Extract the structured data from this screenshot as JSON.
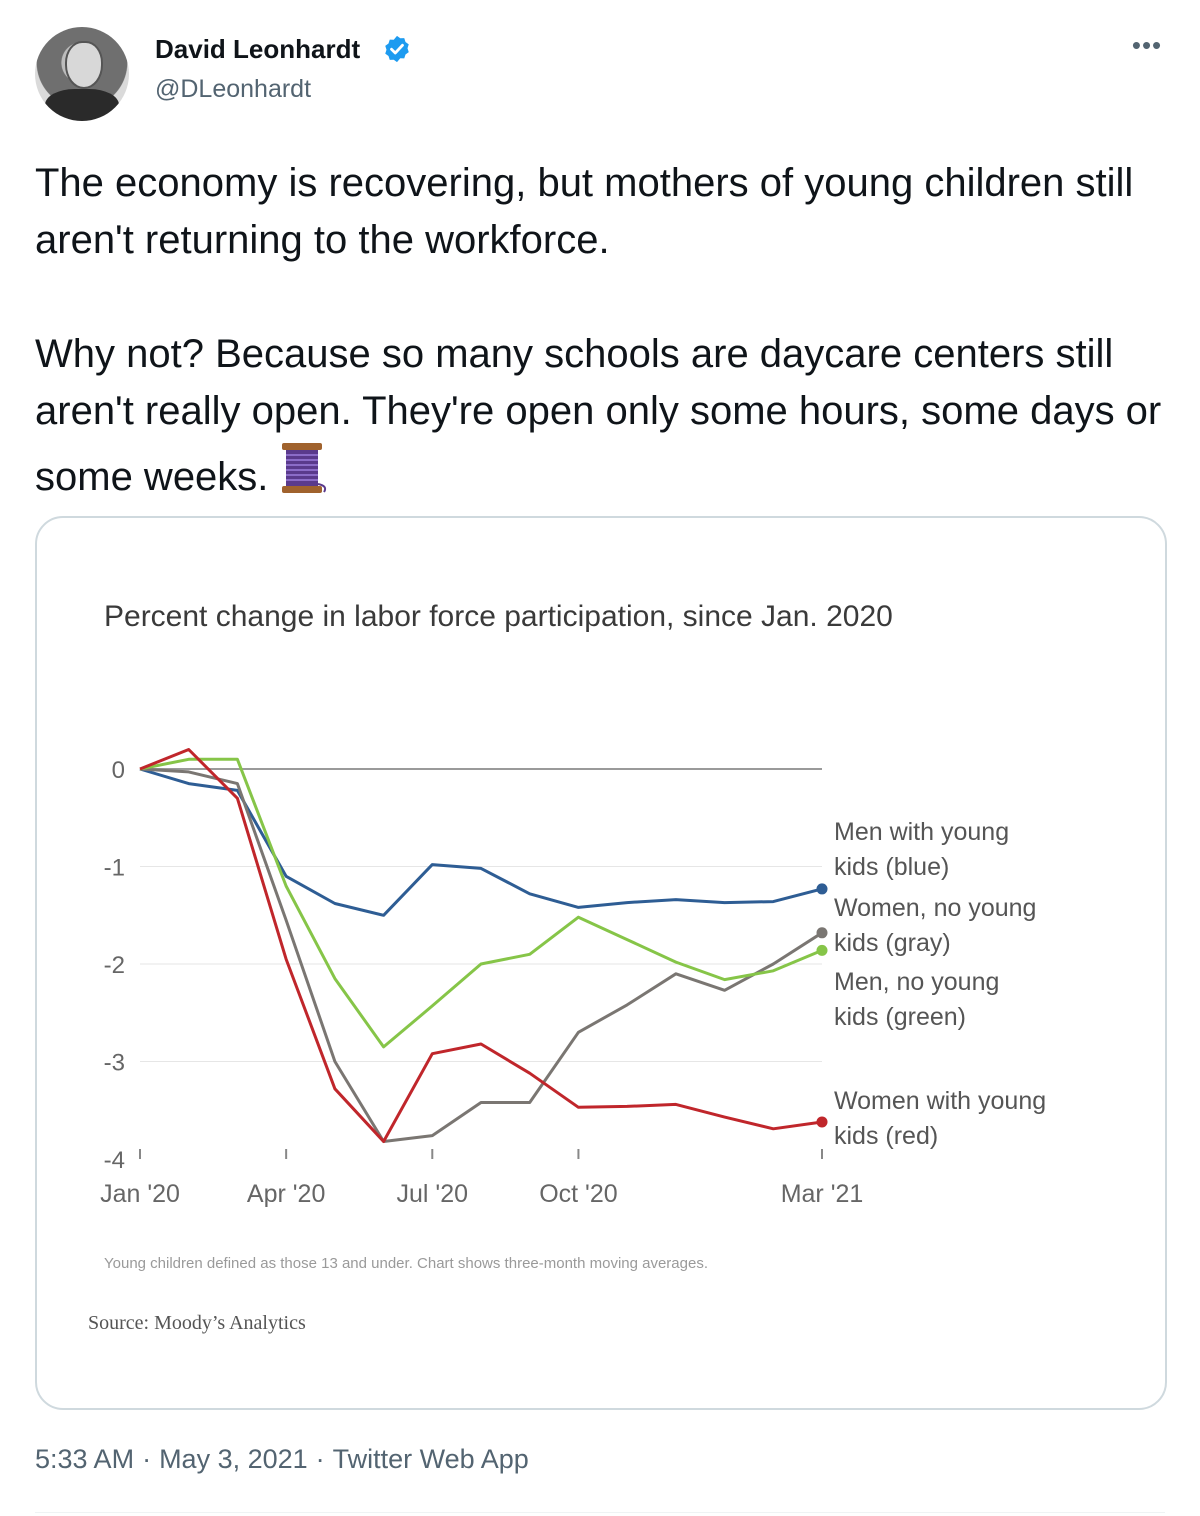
{
  "author": {
    "name": "David Leonhardt",
    "handle": "@DLeonhardt",
    "verified": true,
    "avatar_icon": "avatar-photo-icon"
  },
  "tweet": {
    "paragraph1": "The economy is recovering, but mothers of young children still aren't returning to the workforce.",
    "paragraph2": "Why not? Because so many schools are daycare centers still aren't really open. They're open only some hours, some days or some weeks.",
    "emoji_icon": "thread-spool-icon"
  },
  "meta": {
    "time": "5:33 AM",
    "date": "May 3, 2021",
    "source": "Twitter Web App",
    "separator": "·"
  },
  "colors": {
    "verified": "#1d9bf0",
    "blue": "#2e5d94",
    "gray": "#7a7672",
    "green": "#86c548",
    "red": "#c0262b",
    "zero_line": "#9a9a9a"
  },
  "chart_data": {
    "type": "line",
    "title": "Percent change in labor force participation, since Jan. 2020",
    "footnote": "Young children defined as those 13 and under. Chart shows three-month moving averages.",
    "source": "Source: Moody’s Analytics",
    "x": [
      "Jan 2020",
      "Feb 2020",
      "Mar 2020",
      "Apr 2020",
      "May 2020",
      "Jun 2020",
      "Jul 2020",
      "Aug 2020",
      "Sep 2020",
      "Oct 2020",
      "Nov 2020",
      "Dec 2020",
      "Jan 2021",
      "Feb 2021",
      "Mar 2021"
    ],
    "x_ticks": [
      {
        "label": "Jan '20",
        "index": 0
      },
      {
        "label": "Apr '20",
        "index": 3
      },
      {
        "label": "Jul '20",
        "index": 6
      },
      {
        "label": "Oct '20",
        "index": 9
      },
      {
        "label": "Mar '21",
        "index": 14
      }
    ],
    "y_ticks": [
      0,
      -1,
      -2,
      -3,
      -4
    ],
    "ylim": [
      -4,
      0
    ],
    "series": [
      {
        "name": "Men with young kids (blue)",
        "label_lines": [
          "Men with young",
          "kids (blue)"
        ],
        "color_key": "blue",
        "values": [
          0,
          -0.15,
          -0.22,
          -1.1,
          -1.38,
          -1.5,
          -0.98,
          -1.02,
          -1.28,
          -1.42,
          -1.37,
          -1.34,
          -1.37,
          -1.36,
          -1.23
        ]
      },
      {
        "name": "Women, no young kids (gray)",
        "label_lines": [
          "Women, no young",
          "kids (gray)"
        ],
        "color_key": "gray",
        "values": [
          0,
          -0.03,
          -0.15,
          -1.55,
          -3.0,
          -3.82,
          -3.76,
          -3.42,
          -3.42,
          -2.7,
          -2.42,
          -2.1,
          -2.27,
          -2.0,
          -1.68
        ]
      },
      {
        "name": "Men, no young kids (green)",
        "label_lines": [
          "Men, no young",
          "kids (green)"
        ],
        "color_key": "green",
        "values": [
          0,
          0.1,
          0.1,
          -1.2,
          -2.15,
          -2.85,
          -2.43,
          -2.0,
          -1.9,
          -1.52,
          -1.75,
          -1.98,
          -2.16,
          -2.07,
          -1.86
        ]
      },
      {
        "name": "Women with young kids (red)",
        "label_lines": [
          "Women with young",
          "kids (red)"
        ],
        "color_key": "red",
        "values": [
          0,
          0.2,
          -0.3,
          -1.95,
          -3.28,
          -3.82,
          -2.92,
          -2.82,
          -3.12,
          -3.47,
          -3.46,
          -3.44,
          -3.57,
          -3.69,
          -3.62
        ]
      }
    ]
  }
}
